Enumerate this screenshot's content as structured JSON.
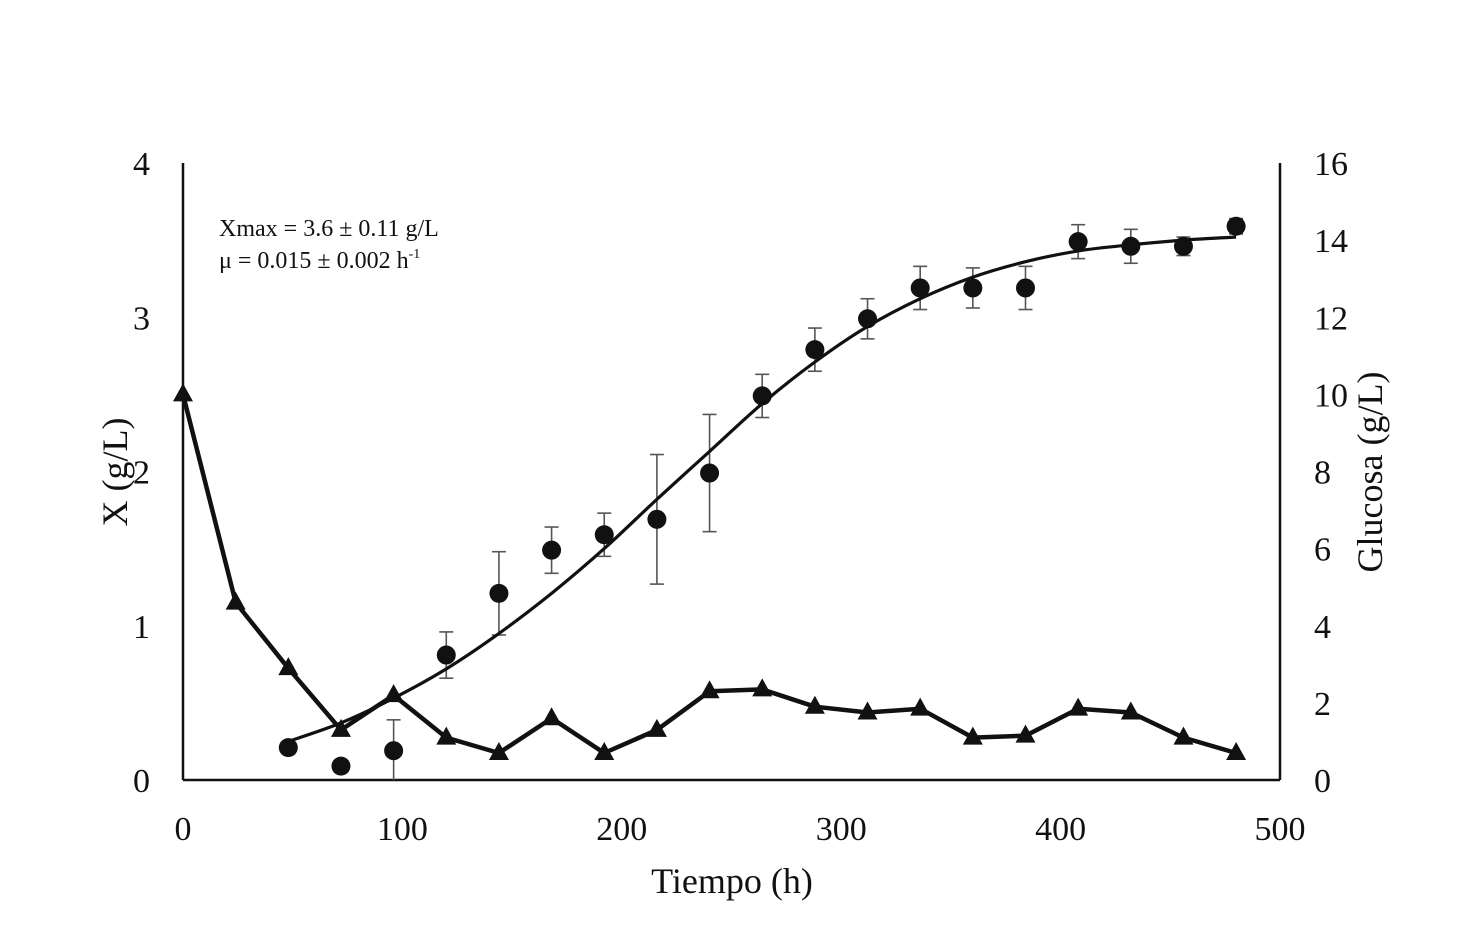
{
  "chart_data": {
    "type": "scatter",
    "xlabel": "Tiempo (h)",
    "ylabel_left": "X (g/L)",
    "ylabel_right": "Glucosa (g/L)",
    "xlim": [
      0,
      500
    ],
    "ylim_left": [
      0,
      4
    ],
    "ylim_right": [
      0,
      16
    ],
    "x_ticks": [
      "0",
      "100",
      "200",
      "300",
      "400",
      "500"
    ],
    "y_ticks_left": [
      "0",
      "1",
      "2",
      "3",
      "4"
    ],
    "y_ticks_right": [
      "0",
      "2",
      "4",
      "6",
      "8",
      "10",
      "12",
      "14",
      "16"
    ],
    "annotations": {
      "line1": "Xmax = 3.6 ± 0.11 g/L",
      "line2_main": "μ = 0.015 ± 0.002 h",
      "line2_sup": "-1"
    },
    "grid": false,
    "series": [
      {
        "axis": "left",
        "marker": "circle",
        "x": [
          48,
          72,
          96,
          120,
          144,
          168,
          192,
          216,
          240,
          264,
          288,
          312,
          336,
          360,
          384,
          408,
          432,
          456,
          480
        ],
        "y": [
          0.21,
          0.09,
          0.19,
          0.81,
          1.21,
          1.49,
          1.59,
          1.69,
          1.99,
          2.49,
          2.79,
          2.99,
          3.19,
          3.19,
          3.19,
          3.49,
          3.46,
          3.46,
          3.59
        ],
        "error": [
          0,
          0,
          0.2,
          0.15,
          0.27,
          0.15,
          0.14,
          0.42,
          0.38,
          0.14,
          0.14,
          0.13,
          0.14,
          0.13,
          0.14,
          0.11,
          0.11,
          0.06,
          0.05
        ]
      },
      {
        "axis": "left",
        "type": "line",
        "x": [
          48,
          72,
          96,
          120,
          144,
          168,
          192,
          216,
          240,
          264,
          288,
          312,
          336,
          360,
          384,
          408,
          432,
          456,
          480
        ],
        "y": [
          0.25,
          0.37,
          0.53,
          0.72,
          0.95,
          1.21,
          1.5,
          1.82,
          2.13,
          2.44,
          2.71,
          2.94,
          3.12,
          3.26,
          3.36,
          3.43,
          3.47,
          3.5,
          3.52
        ]
      },
      {
        "axis": "right",
        "marker": "triangle",
        "type": "line",
        "x": [
          0,
          24,
          48,
          72,
          96,
          120,
          144,
          168,
          192,
          216,
          240,
          264,
          288,
          312,
          336,
          360,
          384,
          408,
          432,
          456,
          480
        ],
        "y": [
          10.0,
          4.6,
          2.9,
          1.3,
          2.2,
          1.1,
          0.7,
          1.6,
          0.7,
          1.3,
          2.3,
          2.35,
          1.9,
          1.75,
          1.85,
          1.1,
          1.15,
          1.85,
          1.75,
          1.1,
          0.7
        ]
      }
    ]
  }
}
